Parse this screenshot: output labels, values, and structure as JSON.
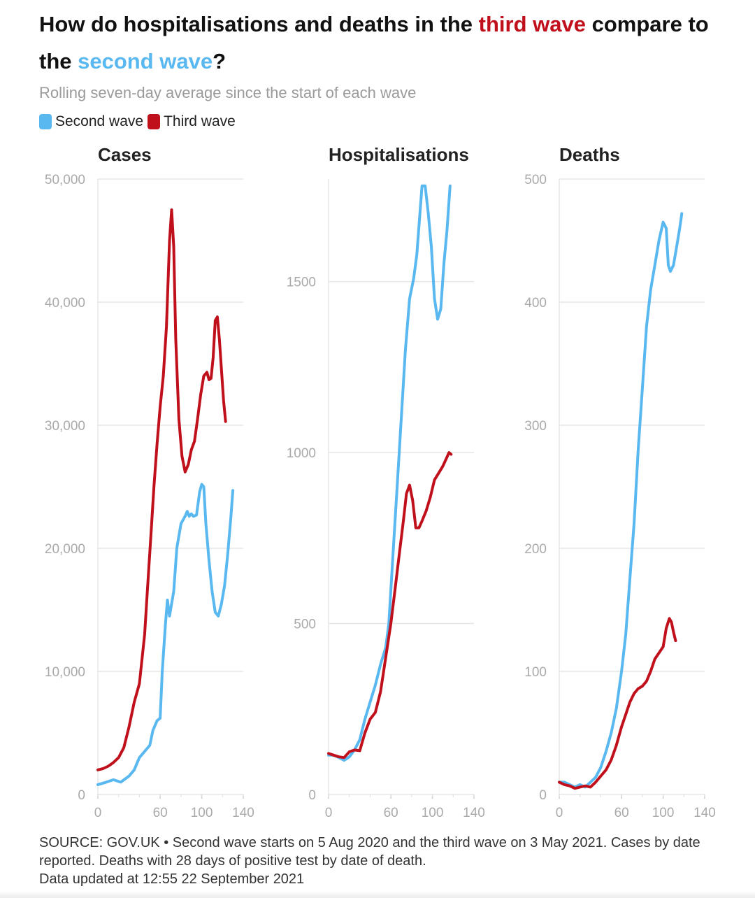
{
  "title": {
    "part1": "How do hospitalisations and deaths in the ",
    "highlight_third": "third wave",
    "part2": " compare to the ",
    "highlight_second": "second wave",
    "part3": "?"
  },
  "subtitle": "Rolling seven-day average since the start of each wave",
  "legend": [
    {
      "label": "Second wave",
      "color": "#5ab8f0"
    },
    {
      "label": "Third wave",
      "color": "#c0101b"
    }
  ],
  "source": {
    "line1": "SOURCE: GOV.UK • Second wave starts on 5 Aug 2020 and the third wave on 3 May 2021. Cases by date reported. Deaths with 28 days of positive test by date of death.",
    "line2": "Data updated at 12:55 22 September 2021"
  },
  "chart_data": [
    {
      "type": "line",
      "title": "Cases",
      "xlim": [
        0,
        140
      ],
      "ylim": [
        0,
        50000
      ],
      "x_ticks": [
        "0",
        "60",
        "100",
        "140"
      ],
      "y_ticks": [
        "0",
        "10,000",
        "20,000",
        "30,000",
        "40,000",
        "50,000"
      ],
      "series": [
        {
          "name": "Second wave",
          "color": "#5ab8f0",
          "points": [
            [
              0,
              800
            ],
            [
              8,
              1000
            ],
            [
              15,
              1200
            ],
            [
              22,
              1000
            ],
            [
              30,
              1500
            ],
            [
              35,
              2000
            ],
            [
              40,
              3000
            ],
            [
              45,
              3500
            ],
            [
              50,
              4000
            ],
            [
              53,
              5200
            ],
            [
              57,
              6000
            ],
            [
              60,
              6200
            ],
            [
              62,
              10000
            ],
            [
              65,
              13800
            ],
            [
              67,
              15800
            ],
            [
              69,
              14500
            ],
            [
              71,
              15500
            ],
            [
              73,
              16500
            ],
            [
              76,
              20000
            ],
            [
              80,
              22000
            ],
            [
              84,
              22600
            ],
            [
              86,
              23000
            ],
            [
              88,
              22600
            ],
            [
              90,
              22800
            ],
            [
              92,
              22600
            ],
            [
              95,
              22700
            ],
            [
              98,
              24600
            ],
            [
              100,
              25200
            ],
            [
              102,
              25000
            ],
            [
              104,
              22000
            ],
            [
              107,
              19000
            ],
            [
              110,
              16500
            ],
            [
              113,
              14800
            ],
            [
              116,
              14500
            ],
            [
              119,
              15500
            ],
            [
              122,
              17000
            ],
            [
              125,
              19500
            ],
            [
              128,
              22500
            ],
            [
              130,
              24700
            ]
          ]
        },
        {
          "name": "Third wave",
          "color": "#c0101b",
          "points": [
            [
              0,
              2000
            ],
            [
              5,
              2100
            ],
            [
              10,
              2300
            ],
            [
              15,
              2600
            ],
            [
              20,
              3000
            ],
            [
              25,
              3800
            ],
            [
              30,
              5500
            ],
            [
              35,
              7500
            ],
            [
              40,
              9000
            ],
            [
              45,
              13000
            ],
            [
              48,
              17000
            ],
            [
              51,
              21000
            ],
            [
              54,
              25000
            ],
            [
              57,
              28500
            ],
            [
              60,
              31500
            ],
            [
              63,
              34000
            ],
            [
              66,
              38000
            ],
            [
              69,
              45000
            ],
            [
              71,
              47500
            ],
            [
              73,
              44500
            ],
            [
              75,
              37000
            ],
            [
              78,
              30500
            ],
            [
              81,
              27500
            ],
            [
              84,
              26200
            ],
            [
              87,
              26800
            ],
            [
              90,
              28000
            ],
            [
              93,
              28700
            ],
            [
              96,
              30500
            ],
            [
              99,
              32500
            ],
            [
              102,
              34000
            ],
            [
              105,
              34300
            ],
            [
              107,
              33700
            ],
            [
              109,
              33800
            ],
            [
              111,
              35500
            ],
            [
              113,
              38500
            ],
            [
              115,
              38800
            ],
            [
              117,
              37000
            ],
            [
              119,
              34500
            ],
            [
              121,
              32000
            ],
            [
              123,
              30300
            ]
          ]
        }
      ]
    },
    {
      "type": "line",
      "title": "Hospitalisations",
      "xlim": [
        0,
        140
      ],
      "ylim": [
        0,
        1800
      ],
      "x_ticks": [
        "0",
        "60",
        "100",
        "140"
      ],
      "y_ticks": [
        "0",
        "500",
        "1000",
        "1500"
      ],
      "series": [
        {
          "name": "Second wave",
          "color": "#5ab8f0",
          "points": [
            [
              0,
              115
            ],
            [
              5,
              115
            ],
            [
              10,
              108
            ],
            [
              15,
              100
            ],
            [
              20,
              110
            ],
            [
              25,
              130
            ],
            [
              30,
              160
            ],
            [
              35,
              220
            ],
            [
              40,
              270
            ],
            [
              45,
              320
            ],
            [
              50,
              380
            ],
            [
              55,
              430
            ],
            [
              58,
              500
            ],
            [
              62,
              700
            ],
            [
              66,
              900
            ],
            [
              70,
              1100
            ],
            [
              74,
              1300
            ],
            [
              78,
              1450
            ],
            [
              82,
              1510
            ],
            [
              85,
              1580
            ],
            [
              88,
              1700
            ],
            [
              90,
              1780
            ],
            [
              93,
              1780
            ],
            [
              96,
              1700
            ],
            [
              99,
              1600
            ],
            [
              102,
              1450
            ],
            [
              105,
              1390
            ],
            [
              108,
              1420
            ],
            [
              111,
              1550
            ],
            [
              114,
              1650
            ],
            [
              117,
              1780
            ]
          ]
        },
        {
          "name": "Third wave",
          "color": "#c0101b",
          "points": [
            [
              0,
              120
            ],
            [
              5,
              115
            ],
            [
              10,
              110
            ],
            [
              15,
              108
            ],
            [
              20,
              125
            ],
            [
              25,
              130
            ],
            [
              30,
              128
            ],
            [
              35,
              180
            ],
            [
              40,
              220
            ],
            [
              45,
              240
            ],
            [
              50,
              300
            ],
            [
              55,
              400
            ],
            [
              60,
              500
            ],
            [
              64,
              600
            ],
            [
              68,
              700
            ],
            [
              72,
              800
            ],
            [
              75,
              880
            ],
            [
              78,
              905
            ],
            [
              81,
              860
            ],
            [
              84,
              780
            ],
            [
              87,
              780
            ],
            [
              90,
              800
            ],
            [
              94,
              830
            ],
            [
              98,
              870
            ],
            [
              102,
              920
            ],
            [
              106,
              940
            ],
            [
              110,
              960
            ],
            [
              113,
              980
            ],
            [
              116,
              1000
            ],
            [
              118,
              995
            ]
          ]
        }
      ]
    },
    {
      "type": "line",
      "title": "Deaths",
      "xlim": [
        0,
        140
      ],
      "ylim": [
        0,
        500
      ],
      "x_ticks": [
        "0",
        "60",
        "100",
        "140"
      ],
      "y_ticks": [
        "0",
        "100",
        "200",
        "300",
        "400",
        "500"
      ],
      "series": [
        {
          "name": "Second wave",
          "color": "#5ab8f0",
          "points": [
            [
              0,
              10
            ],
            [
              5,
              10
            ],
            [
              10,
              8
            ],
            [
              15,
              6
            ],
            [
              20,
              8
            ],
            [
              25,
              6
            ],
            [
              30,
              10
            ],
            [
              35,
              14
            ],
            [
              40,
              22
            ],
            [
              45,
              35
            ],
            [
              50,
              50
            ],
            [
              55,
              70
            ],
            [
              60,
              100
            ],
            [
              64,
              130
            ],
            [
              68,
              175
            ],
            [
              72,
              220
            ],
            [
              76,
              280
            ],
            [
              80,
              330
            ],
            [
              84,
              380
            ],
            [
              88,
              410
            ],
            [
              92,
              430
            ],
            [
              96,
              450
            ],
            [
              100,
              465
            ],
            [
              103,
              460
            ],
            [
              105,
              430
            ],
            [
              107,
              425
            ],
            [
              110,
              430
            ],
            [
              113,
              445
            ],
            [
              116,
              460
            ],
            [
              118,
              472
            ]
          ]
        },
        {
          "name": "Third wave",
          "color": "#c0101b",
          "points": [
            [
              0,
              10
            ],
            [
              5,
              8
            ],
            [
              10,
              7
            ],
            [
              15,
              5
            ],
            [
              20,
              6
            ],
            [
              25,
              7
            ],
            [
              30,
              6
            ],
            [
              35,
              10
            ],
            [
              40,
              15
            ],
            [
              45,
              20
            ],
            [
              50,
              28
            ],
            [
              55,
              40
            ],
            [
              60,
              55
            ],
            [
              64,
              65
            ],
            [
              68,
              75
            ],
            [
              72,
              82
            ],
            [
              76,
              86
            ],
            [
              80,
              88
            ],
            [
              84,
              92
            ],
            [
              88,
              100
            ],
            [
              92,
              110
            ],
            [
              96,
              115
            ],
            [
              100,
              120
            ],
            [
              103,
              135
            ],
            [
              106,
              143
            ],
            [
              108,
              140
            ],
            [
              110,
              132
            ],
            [
              112,
              125
            ]
          ]
        }
      ]
    }
  ]
}
